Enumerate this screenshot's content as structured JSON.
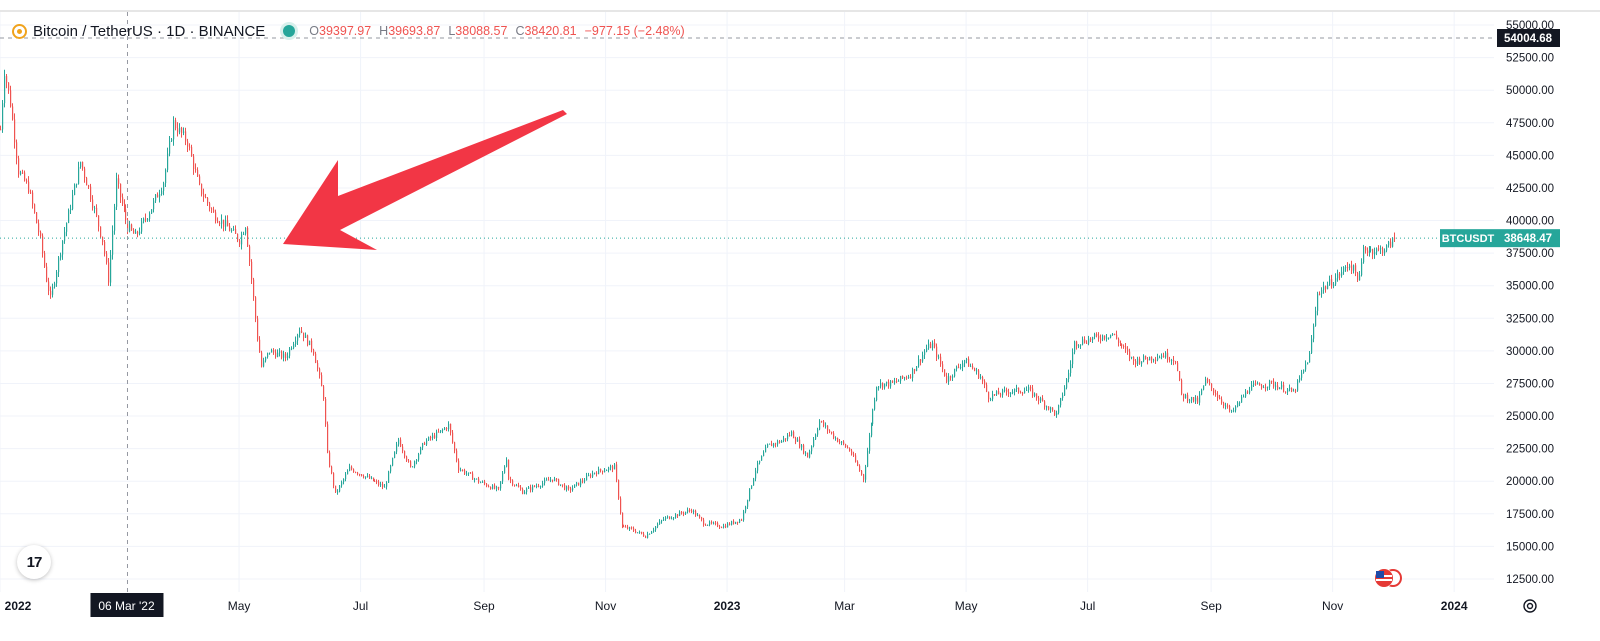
{
  "header": {
    "symbol": "Bitcoin / TetherUS · 1D · BINANCE",
    "open_key": "O",
    "open": "39397.97",
    "high_key": "H",
    "high": "39693.87",
    "low_key": "L",
    "low": "38088.57",
    "close_key": "C",
    "close": "38420.81",
    "change": "−977.15 (−2.48%)"
  },
  "tv_logo": "17",
  "icons": [
    "bitcoin-icon",
    "status-dot-icon",
    "tradingview-logo-icon",
    "us-flag-icon",
    "settings-gear-icon"
  ],
  "colors": {
    "up": "#26a69a",
    "down": "#ef5350",
    "arrow": "#f23645",
    "grid": "#f0f3fa",
    "label_dark": "#131722"
  },
  "chart_data": {
    "type": "candlestick",
    "price_axis_ticks": [
      "55000.00",
      "52500.00",
      "50000.00",
      "47500.00",
      "45000.00",
      "42500.00",
      "40000.00",
      "37500.00",
      "35000.00",
      "32500.00",
      "30000.00",
      "27500.00",
      "25000.00",
      "22500.00",
      "20000.00",
      "17500.00",
      "15000.00",
      "12500.00"
    ],
    "time_axis_ticks": [
      "2022",
      "May",
      "Jul",
      "Sep",
      "Nov",
      "2023",
      "Mar",
      "May",
      "Jul",
      "Sep",
      "Nov",
      "2024"
    ],
    "crosshair_time_label": "06 Mar '22",
    "crosshair_price_label": "54004.68",
    "last_price_symbol": "BTCUSDT",
    "last_price_value": "38648.47",
    "ylim": [
      11500,
      56000
    ],
    "xlim": [
      "2022-01-01",
      "2024-01-21"
    ],
    "annotation": "red arrow pointing at the early May 2022 breakdown near 38600",
    "anchor_points": [
      [
        "2022-01-01",
        47000
      ],
      [
        "2022-01-03",
        51500
      ],
      [
        "2022-01-06",
        49000
      ],
      [
        "2022-01-10",
        43800
      ],
      [
        "2022-01-15",
        42500
      ],
      [
        "2022-01-21",
        38500
      ],
      [
        "2022-01-24",
        35500
      ],
      [
        "2022-01-26",
        34000
      ],
      [
        "2022-02-01",
        38500
      ],
      [
        "2022-02-07",
        42500
      ],
      [
        "2022-02-10",
        44500
      ],
      [
        "2022-02-14",
        42500
      ],
      [
        "2022-02-21",
        38500
      ],
      [
        "2022-02-24",
        35500
      ],
      [
        "2022-02-28",
        43000
      ],
      [
        "2022-03-06",
        39500
      ],
      [
        "2022-03-10",
        38800
      ],
      [
        "2022-03-18",
        41000
      ],
      [
        "2022-03-24",
        43000
      ],
      [
        "2022-03-29",
        47500
      ],
      [
        "2022-04-05",
        46000
      ],
      [
        "2022-04-11",
        42500
      ],
      [
        "2022-04-18",
        40500
      ],
      [
        "2022-04-25",
        39500
      ],
      [
        "2022-05-01",
        38500
      ],
      [
        "2022-05-04",
        39700
      ],
      [
        "2022-05-07",
        35500
      ],
      [
        "2022-05-10",
        31000
      ],
      [
        "2022-05-12",
        28800
      ],
      [
        "2022-05-16",
        30000
      ],
      [
        "2022-05-24",
        29500
      ],
      [
        "2022-05-31",
        31700
      ],
      [
        "2022-06-07",
        30000
      ],
      [
        "2022-06-12",
        26500
      ],
      [
        "2022-06-14",
        22000
      ],
      [
        "2022-06-18",
        19000
      ],
      [
        "2022-06-25",
        21000
      ],
      [
        "2022-07-05",
        20200
      ],
      [
        "2022-07-13",
        19500
      ],
      [
        "2022-07-20",
        23200
      ],
      [
        "2022-07-26",
        21000
      ],
      [
        "2022-08-02",
        23000
      ],
      [
        "2022-08-10",
        23800
      ],
      [
        "2022-08-14",
        24300
      ],
      [
        "2022-08-19",
        21000
      ],
      [
        "2022-08-29",
        20000
      ],
      [
        "2022-09-08",
        19300
      ],
      [
        "2022-09-12",
        21800
      ],
      [
        "2022-09-13",
        20200
      ],
      [
        "2022-09-20",
        19200
      ],
      [
        "2022-10-05",
        20200
      ],
      [
        "2022-10-13",
        19300
      ],
      [
        "2022-10-26",
        20700
      ],
      [
        "2022-11-05",
        21100
      ],
      [
        "2022-11-09",
        16500
      ],
      [
        "2022-11-14",
        16300
      ],
      [
        "2022-11-21",
        15800
      ],
      [
        "2022-11-30",
        17100
      ],
      [
        "2022-12-14",
        17800
      ],
      [
        "2022-12-20",
        16800
      ],
      [
        "2022-12-30",
        16550
      ],
      [
        "2023-01-08",
        17100
      ],
      [
        "2023-01-13",
        19800
      ],
      [
        "2023-01-15",
        20900
      ],
      [
        "2023-01-21",
        22700
      ],
      [
        "2023-01-28",
        23100
      ],
      [
        "2023-02-02",
        23700
      ],
      [
        "2023-02-10",
        21900
      ],
      [
        "2023-02-16",
        24600
      ],
      [
        "2023-02-24",
        23300
      ],
      [
        "2023-03-03",
        22400
      ],
      [
        "2023-03-10",
        20200
      ],
      [
        "2023-03-14",
        24500
      ],
      [
        "2023-03-17",
        27400
      ],
      [
        "2023-03-25",
        27500
      ],
      [
        "2023-04-03",
        28200
      ],
      [
        "2023-04-11",
        30200
      ],
      [
        "2023-04-14",
        30500
      ],
      [
        "2023-04-21",
        27800
      ],
      [
        "2023-04-30",
        29300
      ],
      [
        "2023-05-08",
        28000
      ],
      [
        "2023-05-12",
        26500
      ],
      [
        "2023-05-22",
        26900
      ],
      [
        "2023-06-01",
        27000
      ],
      [
        "2023-06-10",
        25800
      ],
      [
        "2023-06-15",
        25100
      ],
      [
        "2023-06-21",
        28300
      ],
      [
        "2023-06-24",
        30600
      ],
      [
        "2023-07-04",
        31000
      ],
      [
        "2023-07-13",
        31300
      ],
      [
        "2023-07-24",
        29200
      ],
      [
        "2023-08-08",
        29700
      ],
      [
        "2023-08-14",
        29300
      ],
      [
        "2023-08-17",
        26600
      ],
      [
        "2023-08-25",
        26100
      ],
      [
        "2023-08-29",
        27700
      ],
      [
        "2023-09-11",
        25200
      ],
      [
        "2023-09-20",
        27200
      ],
      [
        "2023-10-01",
        27500
      ],
      [
        "2023-10-12",
        26800
      ],
      [
        "2023-10-17",
        28500
      ],
      [
        "2023-10-20",
        29700
      ],
      [
        "2023-10-23",
        33000
      ],
      [
        "2023-10-24",
        34500
      ],
      [
        "2023-11-01",
        35400
      ],
      [
        "2023-11-09",
        36700
      ],
      [
        "2023-11-14",
        35500
      ],
      [
        "2023-11-16",
        37800
      ],
      [
        "2023-11-24",
        37700
      ],
      [
        "2023-11-28",
        37900
      ],
      [
        "2023-12-02",
        38600
      ]
    ]
  }
}
